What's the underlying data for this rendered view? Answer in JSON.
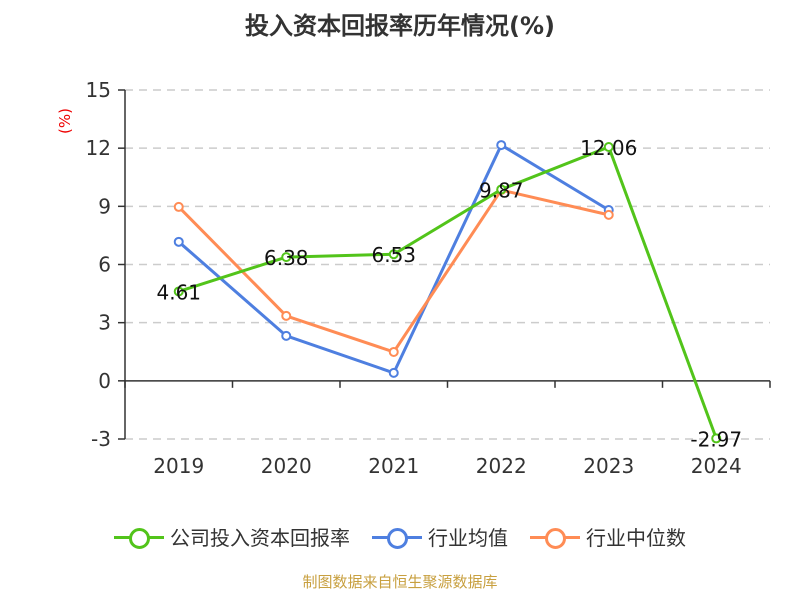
{
  "chart_data": {
    "type": "line",
    "title": "投入资本回报率历年情况(%)",
    "ylabel": "(%)",
    "categories": [
      "2019",
      "2020",
      "2021",
      "2022",
      "2023",
      "2024"
    ],
    "ylim": [
      -3,
      15
    ],
    "yticks": [
      -3,
      0,
      3,
      6,
      9,
      12,
      15
    ],
    "grid": true,
    "legend_position": "bottom",
    "series": [
      {
        "name": "公司投入资本回报率",
        "color": "#52c41a",
        "values": [
          4.61,
          6.38,
          6.53,
          9.87,
          12.06,
          -2.97
        ],
        "labels": [
          "4.61",
          "6.38",
          "6.53",
          "9.87",
          "12.06",
          "-2.97"
        ]
      },
      {
        "name": "行业均值",
        "color": "#4e7fe0",
        "values": [
          7.17,
          2.32,
          0.41,
          12.16,
          8.81,
          null
        ]
      },
      {
        "name": "行业中位数",
        "color": "#ff8c55",
        "values": [
          8.97,
          3.35,
          1.49,
          9.84,
          8.56,
          null
        ]
      }
    ]
  },
  "source": "制图数据来自恒生聚源数据库"
}
